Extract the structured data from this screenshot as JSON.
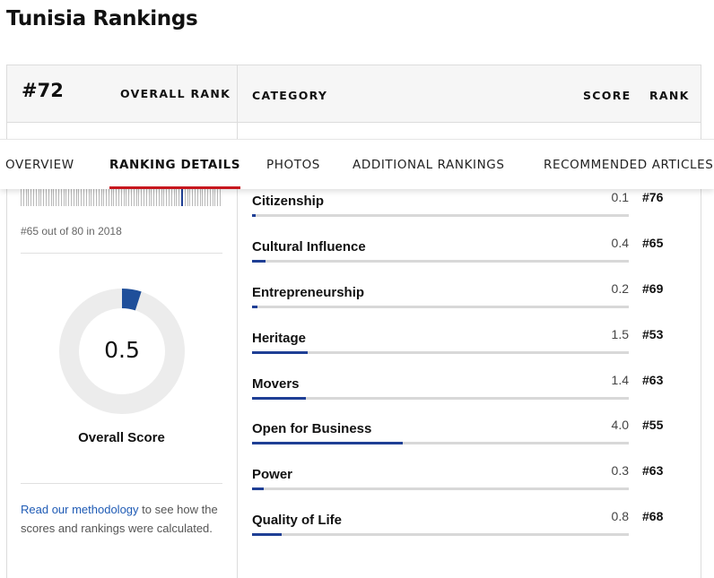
{
  "page_title": "Tunisia Rankings",
  "header": {
    "overall_rank": "#72",
    "overall_rank_label": "OVERALL RANK",
    "category_label": "CATEGORY",
    "score_label": "SCORE",
    "rank_label": "RANK"
  },
  "tabs": [
    {
      "label": "OVERVIEW",
      "active": false
    },
    {
      "label": "RANKING DETAILS",
      "active": true
    },
    {
      "label": "PHOTOS",
      "active": false
    },
    {
      "label": "ADDITIONAL RANKINGS",
      "active": false
    },
    {
      "label": "RECOMMENDED ARTICLES",
      "active": false
    }
  ],
  "sidebar": {
    "history": {
      "total": 80,
      "highlighted_position": 65
    },
    "history_note": "#65 out of 80 in 2018",
    "overall_score": "0.5",
    "overall_score_fraction": 0.05,
    "overall_score_label": "Overall Score",
    "methodology_link": "Read our methodology",
    "methodology_text": "to see how the scores and rankings were calculated."
  },
  "categories": [
    {
      "name": "Citizenship",
      "score": "0.1",
      "rank": "#76",
      "bar_fraction": 0.01
    },
    {
      "name": "Cultural Influence",
      "score": "0.4",
      "rank": "#65",
      "bar_fraction": 0.035
    },
    {
      "name": "Entrepreneurship",
      "score": "0.2",
      "rank": "#69",
      "bar_fraction": 0.015
    },
    {
      "name": "Heritage",
      "score": "1.5",
      "rank": "#53",
      "bar_fraction": 0.148
    },
    {
      "name": "Movers",
      "score": "1.4",
      "rank": "#63",
      "bar_fraction": 0.143
    },
    {
      "name": "Open for Business",
      "score": "4.0",
      "rank": "#55",
      "bar_fraction": 0.4
    },
    {
      "name": "Power",
      "score": "0.3",
      "rank": "#63",
      "bar_fraction": 0.03
    },
    {
      "name": "Quality of Life",
      "score": "0.8",
      "rank": "#68",
      "bar_fraction": 0.078
    }
  ],
  "colors": {
    "accent": "#1f3f95",
    "active_tab": "#c7171e",
    "donut_track": "#ececec",
    "donut_fill": "#1f4f9a"
  }
}
